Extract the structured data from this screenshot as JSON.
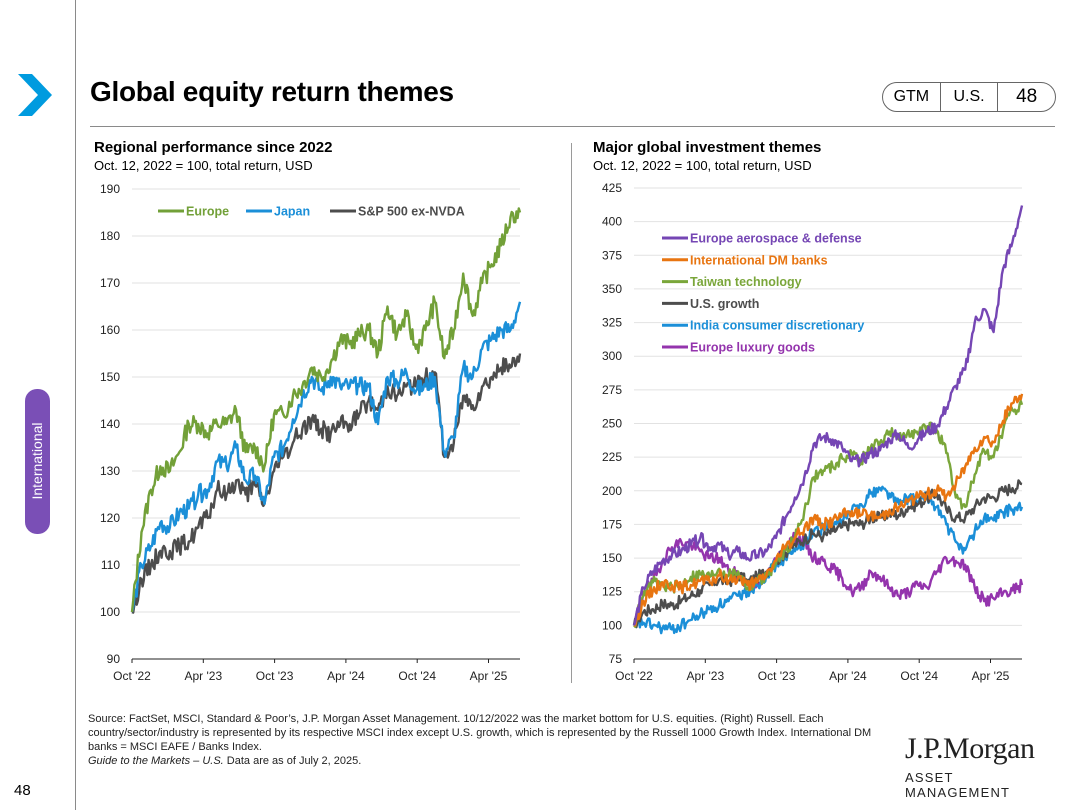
{
  "header": {
    "title": "Global equity return themes",
    "badge": [
      "GTM",
      "U.S.",
      "48"
    ]
  },
  "sidebar": {
    "section": "International",
    "page_number": "48"
  },
  "colors": {
    "accent": "#009bdf",
    "section": "#7a4fb6",
    "europe": "#72a038",
    "japan": "#1b8fd8",
    "sp": "#4d4d4d",
    "aero": "#7546b4",
    "intl": "#e87511",
    "taiwan": "#7aa63a",
    "usgrowth": "#4d4d4d",
    "india": "#1b8fd8",
    "lux": "#9434ad"
  },
  "chart_data": [
    {
      "type": "line",
      "title": "Regional performance since 2022",
      "subtitle": "Oct. 12, 2022 = 100, total return, USD",
      "x_ticks": [
        "Oct '22",
        "Apr '23",
        "Oct '23",
        "Apr '24",
        "Oct '24",
        "Apr '25"
      ],
      "ylim": [
        90,
        190
      ],
      "y_ticks": [
        90,
        100,
        110,
        120,
        130,
        140,
        150,
        160,
        170,
        180,
        190
      ],
      "legend": [
        "Europe",
        "Japan",
        "S&P 500 ex-NVDA"
      ],
      "legend_position": "top-left",
      "series": [
        {
          "name": "Europe",
          "values": [
            100,
            117,
            126,
            131,
            130,
            134,
            140,
            140,
            138,
            140,
            140,
            143,
            134,
            135,
            131,
            142,
            142,
            146,
            148,
            152,
            150,
            153,
            158,
            157,
            159,
            160,
            155,
            165,
            159,
            163,
            156,
            160,
            166,
            154,
            160,
            172,
            163,
            170,
            174,
            178,
            184,
            185
          ],
          "color_key": "europe"
        },
        {
          "name": "Japan",
          "values": [
            100,
            110,
            114,
            119,
            118,
            121,
            122,
            125,
            126,
            132,
            131,
            135,
            128,
            129,
            123,
            133,
            135,
            141,
            146,
            150,
            147,
            150,
            148,
            148,
            148,
            148,
            140,
            150,
            149,
            151,
            147,
            148,
            150,
            134,
            137,
            152,
            150,
            156,
            158,
            160,
            160,
            166
          ],
          "color_key": "japan"
        },
        {
          "name": "S&P 500 ex-NVDA",
          "values": [
            100,
            107,
            110,
            113,
            113,
            114,
            115,
            118,
            120,
            126,
            125,
            128,
            125,
            127,
            123,
            130,
            133,
            136,
            139,
            141,
            139,
            138,
            140,
            140,
            142,
            145,
            143,
            148,
            146,
            148,
            148,
            150,
            151,
            133,
            136,
            146,
            144,
            148,
            150,
            152,
            152,
            155
          ],
          "color_key": "sp"
        }
      ]
    },
    {
      "type": "line",
      "title": "Major global investment themes",
      "subtitle": "Oct. 12, 2022 = 100, total return, USD",
      "x_ticks": [
        "Oct '22",
        "Apr '23",
        "Oct '23",
        "Apr '24",
        "Oct '24",
        "Apr '25"
      ],
      "ylim": [
        75,
        425
      ],
      "y_ticks": [
        75,
        100,
        125,
        150,
        175,
        200,
        225,
        250,
        275,
        300,
        325,
        350,
        375,
        400,
        425
      ],
      "legend": [
        "Europe aerospace & defense",
        "International DM banks",
        "Taiwan technology",
        "U.S. growth",
        "India consumer discretionary",
        "Europe luxury goods"
      ],
      "legend_position": "top-left",
      "series": [
        {
          "name": "Europe aerospace & defense",
          "values": [
            100,
            128,
            140,
            148,
            152,
            155,
            160,
            165,
            158,
            160,
            152,
            155,
            150,
            152,
            155,
            165,
            180,
            195,
            210,
            235,
            240,
            238,
            232,
            222,
            222,
            228,
            230,
            238,
            242,
            232,
            238,
            244,
            248,
            262,
            278,
            290,
            325,
            335,
            318,
            365,
            385,
            412
          ],
          "color_key": "aero"
        },
        {
          "name": "International DM banks",
          "values": [
            100,
            118,
            126,
            132,
            130,
            128,
            130,
            133,
            132,
            137,
            133,
            136,
            130,
            132,
            138,
            148,
            158,
            165,
            172,
            180,
            175,
            178,
            182,
            185,
            182,
            182,
            180,
            186,
            188,
            192,
            195,
            198,
            200,
            196,
            205,
            218,
            232,
            240,
            236,
            252,
            265,
            272
          ],
          "color_key": "intl"
        },
        {
          "name": "Taiwan technology",
          "values": [
            100,
            122,
            132,
            130,
            128,
            130,
            136,
            138,
            136,
            142,
            137,
            140,
            128,
            133,
            136,
            146,
            156,
            165,
            185,
            210,
            215,
            218,
            224,
            228,
            222,
            232,
            236,
            244,
            238,
            245,
            242,
            248,
            245,
            228,
            195,
            188,
            212,
            230,
            225,
            245,
            260,
            264
          ],
          "color_key": "taiwan"
        },
        {
          "name": "U.S. growth",
          "values": [
            100,
            110,
            112,
            116,
            115,
            118,
            122,
            126,
            130,
            134,
            132,
            138,
            132,
            136,
            140,
            148,
            154,
            160,
            164,
            168,
            166,
            170,
            173,
            176,
            175,
            180,
            180,
            183,
            182,
            188,
            190,
            195,
            198,
            186,
            180,
            180,
            188,
            195,
            195,
            200,
            202,
            205
          ],
          "color_key": "usgrowth"
        },
        {
          "name": "India consumer discretionary",
          "values": [
            100,
            102,
            100,
            98,
            97,
            100,
            104,
            108,
            112,
            115,
            118,
            122,
            125,
            130,
            138,
            145,
            150,
            155,
            162,
            170,
            172,
            175,
            178,
            185,
            190,
            198,
            202,
            198,
            190,
            195,
            192,
            195,
            188,
            175,
            162,
            156,
            170,
            180,
            178,
            184,
            186,
            188
          ],
          "color_key": "india"
        },
        {
          "name": "Europe luxury goods",
          "values": [
            100,
            125,
            132,
            148,
            158,
            162,
            160,
            155,
            150,
            150,
            140,
            138,
            130,
            132,
            136,
            148,
            158,
            165,
            162,
            150,
            148,
            142,
            135,
            125,
            128,
            140,
            136,
            128,
            122,
            125,
            130,
            128,
            140,
            150,
            148,
            145,
            128,
            118,
            120,
            124,
            126,
            130
          ],
          "color_key": "lux"
        }
      ]
    }
  ],
  "footer": {
    "source": "Source: FactSet, MSCI, Standard & Poor’s, J.P. Morgan Asset Management. 10/12/2022 was the market bottom for U.S. equities. (Right) Russell. Each country/sector/industry is represented by its respective MSCI index except U.S. growth, which is represented by the Russell 1000 Growth Index. International DM banks = MSCI EAFE / Banks Index.",
    "guide": "Guide to the Markets – U.S.",
    "asof": " Data are as of July 2, 2025."
  },
  "logo": {
    "name": "J.P.Morgan",
    "sub": "ASSET MANAGEMENT"
  }
}
